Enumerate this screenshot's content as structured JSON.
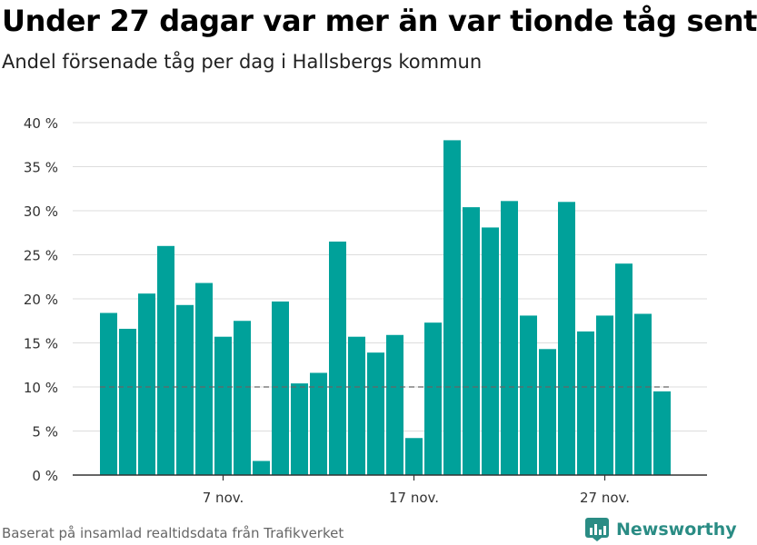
{
  "header": {
    "title": "Under 27 dagar var mer än var tionde tåg sent",
    "subtitle": "Andel försenade tåg per dag i Hallsbergs kommun"
  },
  "footer": {
    "source": "Baserat på insamlad realtidsdata från Trafikverket",
    "brand": "Newsworthy"
  },
  "colors": {
    "bar": "#00a19a",
    "reference_line": "#666666",
    "grid": "#dddddd",
    "brand": "#2a8c84"
  },
  "chart_data": {
    "type": "bar",
    "title": "Under 27 dagar var mer än var tionde tåg sent",
    "subtitle": "Andel försenade tåg per dag i Hallsbergs kommun",
    "categories": [
      "1 nov.",
      "2 nov.",
      "3 nov.",
      "4 nov.",
      "5 nov.",
      "6 nov.",
      "7 nov.",
      "8 nov.",
      "9 nov.",
      "10 nov.",
      "11 nov.",
      "12 nov.",
      "13 nov.",
      "14 nov.",
      "15 nov.",
      "16 nov.",
      "17 nov.",
      "18 nov.",
      "19 nov.",
      "20 nov.",
      "21 nov.",
      "22 nov.",
      "23 nov.",
      "24 nov.",
      "25 nov.",
      "26 nov.",
      "27 nov.",
      "28 nov.",
      "29 nov.",
      "30 nov."
    ],
    "values": [
      18.4,
      16.6,
      20.6,
      26.0,
      19.3,
      21.8,
      15.7,
      17.5,
      1.6,
      19.7,
      10.4,
      11.6,
      26.5,
      15.7,
      13.9,
      15.9,
      4.2,
      17.3,
      38.0,
      30.4,
      28.1,
      31.1,
      18.1,
      14.3,
      31.0,
      16.3,
      18.1,
      24.0,
      18.3,
      9.5
    ],
    "xticks": [
      {
        "index": 6,
        "label": "7 nov."
      },
      {
        "index": 16,
        "label": "17 nov."
      },
      {
        "index": 26,
        "label": "27 nov."
      }
    ],
    "yticks": [
      0,
      5,
      10,
      15,
      20,
      25,
      30,
      35,
      40
    ],
    "ytick_labels": [
      "0 %",
      "5 %",
      "10 %",
      "15 %",
      "20 %",
      "25 %",
      "30 %",
      "35 %",
      "40 %"
    ],
    "ylim": [
      0,
      40
    ],
    "reference_line": 10,
    "grid": true,
    "legend": "none",
    "xlabel": "",
    "ylabel": ""
  }
}
